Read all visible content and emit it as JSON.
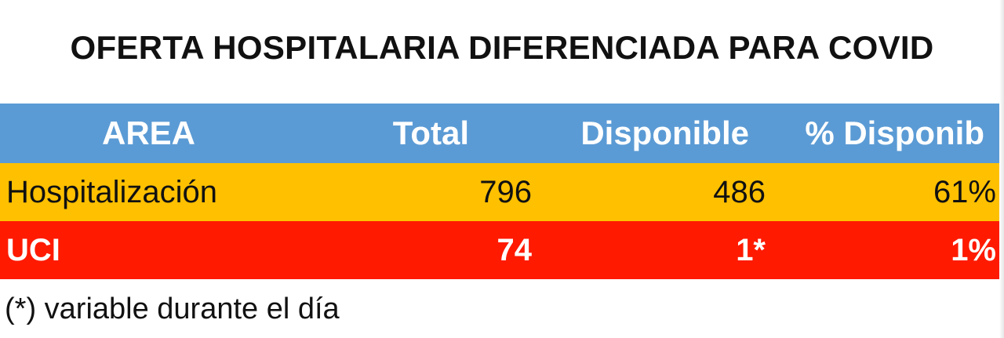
{
  "title": "OFERTA HOSPITALARIA DIFERENCIADA PARA COVID",
  "table": {
    "headers": {
      "area": "AREA",
      "total": "Total",
      "disponible": "Disponible",
      "pct_disponible": "% Disponib"
    },
    "rows": [
      {
        "area": "Hospitalización",
        "total": "796",
        "disponible": "486",
        "pct_disponible": "61%"
      },
      {
        "area": "UCI",
        "total": "74",
        "disponible": "1*",
        "pct_disponible": "1%"
      }
    ]
  },
  "footnote": "(*) variable durante el día",
  "colors": {
    "header_bg": "#5b9bd5",
    "hospitalizacion_bg": "#ffc000",
    "uci_bg": "#ff1a00"
  }
}
